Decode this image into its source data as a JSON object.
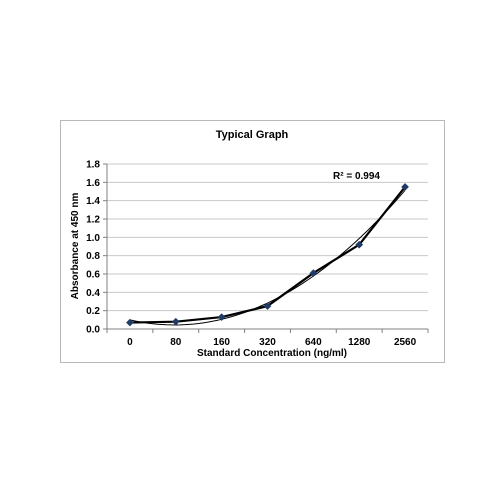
{
  "chart_data": {
    "type": "line",
    "title": "Typical Graph",
    "xlabel": "Standard Concentration (ng/ml)",
    "ylabel": "Absorbance at 450 nm",
    "categories": [
      "0",
      "80",
      "160",
      "320",
      "640",
      "1280",
      "2560"
    ],
    "series": [
      {
        "values": [
          0.07,
          0.08,
          0.13,
          0.25,
          0.61,
          0.92,
          1.55
        ]
      }
    ],
    "trendline": {
      "type": "polynomial",
      "annotation": "R² = 0.994"
    },
    "ylim": [
      0,
      1.8
    ],
    "yticks": [
      "0.0",
      "0.2",
      "0.4",
      "0.6",
      "0.8",
      "1.0",
      "1.2",
      "1.4",
      "1.6",
      "1.8"
    ],
    "grid": true,
    "legend": "none",
    "colors": {
      "line": "#000000",
      "marker": "#1f3b66",
      "grid": "#c8c8c8"
    }
  }
}
